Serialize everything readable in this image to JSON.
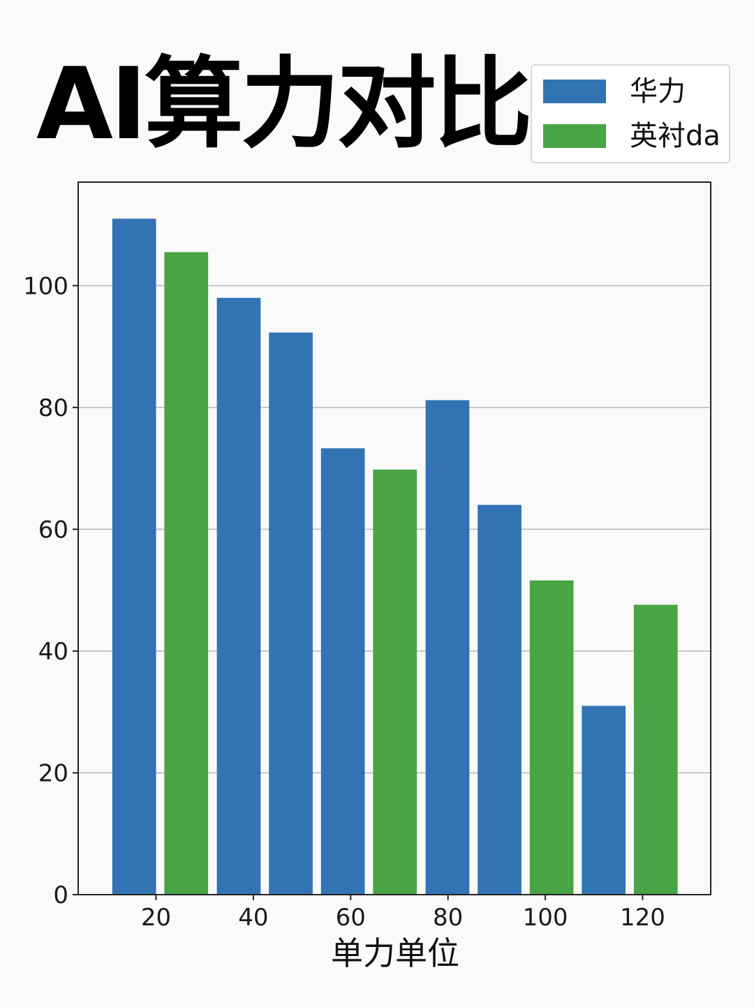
{
  "chart_data": {
    "type": "bar",
    "title": "AI算力对比",
    "xlabel": "单力单位",
    "ylabel": "",
    "xlim": [
      4,
      134
    ],
    "ylim": [
      0,
      117
    ],
    "xticks": [
      20,
      40,
      60,
      80,
      100,
      120
    ],
    "yticks": [
      0,
      20,
      40,
      60,
      80,
      100
    ],
    "grid": "horizontal",
    "legend_position": "top-right",
    "series": [
      {
        "name": "华力",
        "color": "#3274b3"
      },
      {
        "name": "英衬da",
        "color": "#48a444"
      }
    ],
    "bars": [
      {
        "x": 15.5,
        "value": 111,
        "series": 0
      },
      {
        "x": 26.2,
        "value": 105.5,
        "series": 1
      },
      {
        "x": 37,
        "value": 98,
        "series": 0
      },
      {
        "x": 47.7,
        "value": 92.3,
        "series": 0
      },
      {
        "x": 58.4,
        "value": 73.3,
        "series": 0
      },
      {
        "x": 69.1,
        "value": 69.8,
        "series": 1
      },
      {
        "x": 79.9,
        "value": 81.2,
        "series": 0
      },
      {
        "x": 90.6,
        "value": 64,
        "series": 0
      },
      {
        "x": 101.3,
        "value": 51.6,
        "series": 1
      },
      {
        "x": 112,
        "value": 31,
        "series": 0
      },
      {
        "x": 122.7,
        "value": 47.6,
        "series": 1
      }
    ],
    "bar_width": 9
  }
}
